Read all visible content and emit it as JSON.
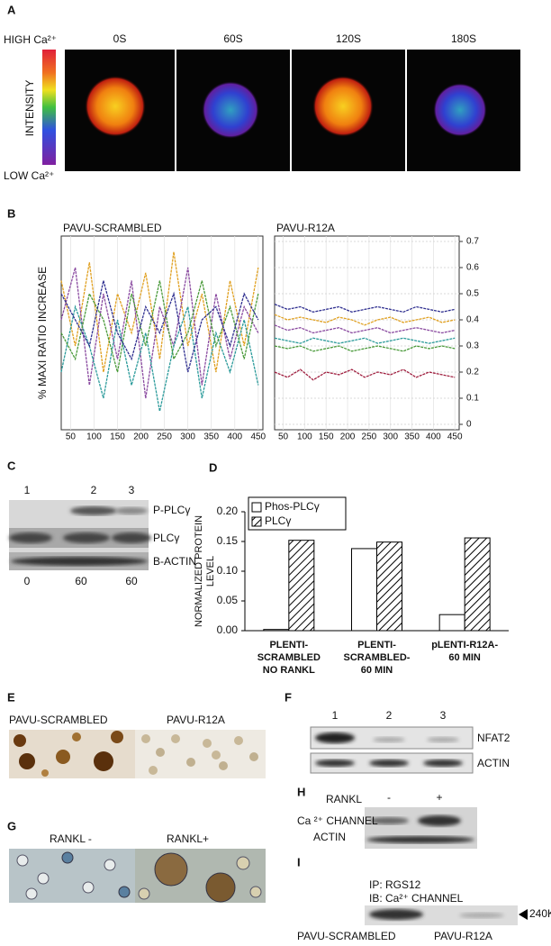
{
  "panels": {
    "a": {
      "label": "A",
      "high": "HIGH Ca²⁺",
      "intensity": "INTENSITY",
      "low": "LOW Ca²⁺",
      "times": [
        "0S",
        "60S",
        "120S",
        "180S"
      ]
    },
    "b": {
      "label": "B"
    },
    "c": {
      "label": "C",
      "lanes": [
        "1",
        "2",
        "3"
      ],
      "bands": [
        "P-PLCγ",
        "PLCγ",
        "B-ACTIN"
      ],
      "times": [
        "0",
        "60",
        "60"
      ]
    },
    "d": {
      "label": "D"
    },
    "e": {
      "label": "E",
      "images": [
        "PAVU-SCRAMBLED",
        "PAVU-R12A"
      ]
    },
    "f": {
      "label": "F",
      "lanes": [
        "1",
        "2",
        "3"
      ],
      "bands": [
        "NFAT2",
        "ACTIN"
      ]
    },
    "g": {
      "label": "G",
      "images": [
        "RANKL -",
        "RANKL+"
      ]
    },
    "h": {
      "label": "H",
      "treatment": "RANKL",
      "lanes": [
        "-",
        "+"
      ],
      "bands": [
        "Ca ²⁺ CHANNEL",
        "ACTIN"
      ]
    },
    "i": {
      "label": "I",
      "ip": "IP: RGS12",
      "ib": "IB: Ca²⁺ CHANNEL",
      "marker": "240K",
      "lanes": [
        "PAVU-SCRAMBLED",
        "PAVU-R12A"
      ]
    }
  },
  "chart_data": [
    {
      "type": "line",
      "title": "PAVU-SCRAMBLED",
      "ylabel": "% MAXI RATIO INCREASE",
      "x": [
        30,
        60,
        90,
        120,
        150,
        180,
        210,
        240,
        270,
        300,
        330,
        360,
        390,
        420,
        450
      ],
      "xlim": [
        30,
        460
      ],
      "xticks": [
        50,
        100,
        150,
        200,
        250,
        300,
        350,
        400,
        450
      ],
      "ylim": [
        0,
        0.7
      ],
      "grid": true,
      "series": [
        {
          "color": "#e0a020",
          "values": [
            0.55,
            0.3,
            0.62,
            0.2,
            0.5,
            0.35,
            0.58,
            0.25,
            0.66,
            0.3,
            0.5,
            0.2,
            0.55,
            0.3,
            0.6
          ]
        },
        {
          "color": "#8a4aa0",
          "values": [
            0.4,
            0.6,
            0.15,
            0.5,
            0.25,
            0.55,
            0.1,
            0.45,
            0.3,
            0.6,
            0.15,
            0.5,
            0.25,
            0.45,
            0.35
          ]
        },
        {
          "color": "#2a9a9a",
          "values": [
            0.2,
            0.45,
            0.3,
            0.1,
            0.4,
            0.15,
            0.35,
            0.05,
            0.3,
            0.45,
            0.1,
            0.35,
            0.2,
            0.4,
            0.15
          ]
        },
        {
          "color": "#4a9a3a",
          "values": [
            0.35,
            0.25,
            0.5,
            0.4,
            0.2,
            0.5,
            0.3,
            0.55,
            0.25,
            0.35,
            0.55,
            0.3,
            0.45,
            0.25,
            0.5
          ]
        },
        {
          "color": "#303090",
          "values": [
            0.5,
            0.4,
            0.3,
            0.55,
            0.35,
            0.25,
            0.45,
            0.35,
            0.5,
            0.2,
            0.4,
            0.45,
            0.3,
            0.5,
            0.4
          ]
        }
      ]
    },
    {
      "type": "line",
      "title": "PAVU-R12A",
      "yaxis": "right",
      "x": [
        30,
        60,
        90,
        120,
        150,
        180,
        210,
        240,
        270,
        300,
        330,
        360,
        390,
        420,
        450
      ],
      "xlim": [
        30,
        460
      ],
      "xticks": [
        50,
        100,
        150,
        200,
        250,
        300,
        350,
        400,
        450
      ],
      "ylim": [
        0,
        0.7
      ],
      "yticks": [
        0,
        0.1,
        0.2,
        0.3,
        0.4,
        0.5,
        0.6,
        0.7
      ],
      "grid": true,
      "series": [
        {
          "color": "#303090",
          "values": [
            0.46,
            0.44,
            0.45,
            0.43,
            0.44,
            0.45,
            0.43,
            0.44,
            0.45,
            0.44,
            0.43,
            0.45,
            0.44,
            0.43,
            0.44
          ]
        },
        {
          "color": "#e0a020",
          "values": [
            0.42,
            0.4,
            0.41,
            0.4,
            0.39,
            0.41,
            0.4,
            0.38,
            0.4,
            0.41,
            0.39,
            0.4,
            0.41,
            0.39,
            0.4
          ]
        },
        {
          "color": "#8a4aa0",
          "values": [
            0.38,
            0.36,
            0.37,
            0.35,
            0.36,
            0.37,
            0.35,
            0.36,
            0.37,
            0.35,
            0.36,
            0.37,
            0.36,
            0.35,
            0.36
          ]
        },
        {
          "color": "#2a9a9a",
          "values": [
            0.33,
            0.32,
            0.31,
            0.33,
            0.32,
            0.31,
            0.32,
            0.33,
            0.31,
            0.32,
            0.33,
            0.32,
            0.31,
            0.32,
            0.33
          ]
        },
        {
          "color": "#4a9a3a",
          "values": [
            0.3,
            0.29,
            0.3,
            0.28,
            0.29,
            0.3,
            0.28,
            0.29,
            0.3,
            0.29,
            0.28,
            0.3,
            0.29,
            0.3,
            0.29
          ]
        },
        {
          "color": "#a02040",
          "values": [
            0.2,
            0.18,
            0.21,
            0.17,
            0.2,
            0.19,
            0.21,
            0.18,
            0.2,
            0.19,
            0.21,
            0.18,
            0.2,
            0.19,
            0.18
          ]
        }
      ]
    },
    {
      "type": "bar",
      "ylabel": "NORMALIZED PROTEIN LEVEL",
      "categories": [
        "PLENTI-\nSCRAMBLED\nNO RANKL",
        "PLENTI-\nSCRAMBLED-\n60 MIN",
        "pLENTI-R12A-\n60 MIN"
      ],
      "ylim": [
        0,
        0.2
      ],
      "yticks": [
        {
          "value": 0,
          "label": "0.00"
        },
        {
          "value": 0.05,
          "label": "0.05"
        },
        {
          "value": 0.1,
          "label": "0.10"
        },
        {
          "value": 0.15,
          "label": "0.15"
        },
        {
          "value": 0.2,
          "label": "0.20"
        }
      ],
      "legend": "top-left",
      "series": [
        {
          "name": "Phos-PLCγ",
          "color": "#ffffff",
          "values": [
            0.002,
            0.138,
            0.027
          ]
        },
        {
          "name": "PLCγ",
          "color": "#000000",
          "fill": "hatch",
          "values": [
            0.152,
            0.149,
            0.156
          ]
        }
      ]
    }
  ]
}
